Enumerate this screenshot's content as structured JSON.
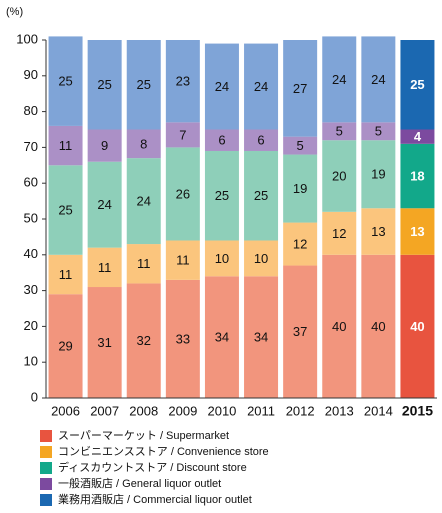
{
  "chart_data": {
    "type": "stacked_bar",
    "unit_label": "(%)",
    "categories": [
      "2006",
      "2007",
      "2008",
      "2009",
      "2010",
      "2011",
      "2012",
      "2013",
      "2014",
      "2015"
    ],
    "ylim": [
      0,
      100
    ],
    "yticks": [
      0,
      10,
      20,
      30,
      40,
      50,
      60,
      70,
      80,
      90,
      100
    ],
    "series": [
      {
        "name": "スーパーマーケット / Supermarket",
        "color": "#e8543f",
        "colors": [
          "#f2957d",
          "#f2957d",
          "#f2957d",
          "#f2957d",
          "#f2957d",
          "#f2957d",
          "#f2957d",
          "#f2957d",
          "#f2957d",
          "#e8543f"
        ],
        "values": [
          29,
          31,
          32,
          33,
          34,
          34,
          37,
          40,
          40,
          40
        ]
      },
      {
        "name": "コンビニエンスストア / Convenience store",
        "color": "#f4a623",
        "colors": [
          "#fbc57d",
          "#fbc57d",
          "#fbc57d",
          "#fbc57d",
          "#fbc57d",
          "#fbc57d",
          "#fbc57d",
          "#fbc57d",
          "#fbc57d",
          "#f4a623"
        ],
        "values": [
          11,
          11,
          11,
          11,
          10,
          10,
          12,
          12,
          13,
          13
        ]
      },
      {
        "name": "ディスカウントストア / Discount store",
        "color": "#12a88a",
        "colors": [
          "#8ecfb9",
          "#8ecfb9",
          "#8ecfb9",
          "#8ecfb9",
          "#8ecfb9",
          "#8ecfb9",
          "#8ecfb9",
          "#8ecfb9",
          "#8ecfb9",
          "#12a88a"
        ],
        "values": [
          25,
          24,
          24,
          26,
          25,
          25,
          19,
          20,
          19,
          18
        ]
      },
      {
        "name": "一般酒販店 / General liquor outlet",
        "color": "#7c4a9f",
        "colors": [
          "#ab90c6",
          "#ab90c6",
          "#ab90c6",
          "#ab90c6",
          "#ab90c6",
          "#ab90c6",
          "#ab90c6",
          "#ab90c6",
          "#ab90c6",
          "#7c4a9f"
        ],
        "values": [
          11,
          9,
          8,
          7,
          6,
          6,
          5,
          5,
          5,
          4
        ]
      },
      {
        "name": "業務用酒販店 / Commercial liquor outlet",
        "color": "#1b68b1",
        "colors": [
          "#7fa4d7",
          "#7fa4d7",
          "#7fa4d7",
          "#7fa4d7",
          "#7fa4d7",
          "#7fa4d7",
          "#7fa4d7",
          "#7fa4d7",
          "#7fa4d7",
          "#1b68b1"
        ],
        "values": [
          25,
          25,
          25,
          23,
          24,
          24,
          27,
          24,
          24,
          25
        ]
      }
    ]
  }
}
